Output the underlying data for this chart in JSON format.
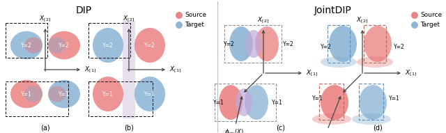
{
  "title_dip": "DIP",
  "title_jointdip": "JointDIP",
  "source_color": "#E87070",
  "target_color": "#7AAAD0",
  "source_label": "Source",
  "target_label": "Target",
  "bg_color": "#ffffff"
}
